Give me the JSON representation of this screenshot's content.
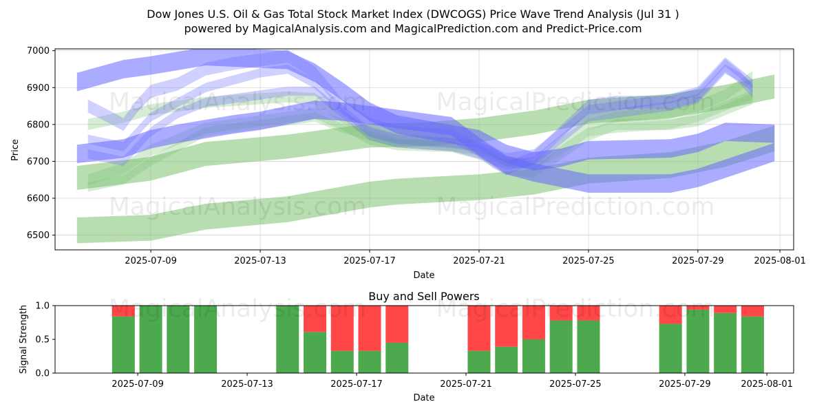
{
  "colors": {
    "green_band": "#7cc16f",
    "blue_band": "#6666ff",
    "buy": "#2e9a2e",
    "sell": "#ff3333",
    "grid": "#b0b0b0"
  },
  "watermarks": [
    "MagicalAnalysis.com",
    "MagicalPrediction.com"
  ],
  "chart_data": [
    {
      "id": "price-wave",
      "type": "area",
      "title": "Dow Jones U.S. Oil & Gas Total Stock Market Index (DWCOGS) Price Wave Trend Analysis (Jul 31 )",
      "subtitle": "powered by MagicalAnalysis.com and MagicalPrediction.com and Predict-Price.com",
      "xlabel": "Date",
      "ylabel": "Price",
      "x_start": "2025-07-05T12:00",
      "x_end": "2025-08-01T12:00",
      "ylim": [
        6460,
        7005
      ],
      "yticks": [
        6500,
        6600,
        6700,
        6800,
        6900,
        7000
      ],
      "xticks": [
        "2025-07-09",
        "2025-07-13",
        "2025-07-17",
        "2025-07-21",
        "2025-07-25",
        "2025-07-29",
        "2025-08-01"
      ],
      "grid": true,
      "bands": [
        {
          "color": "green",
          "width": 70,
          "x": [
            6.3,
            9,
            11,
            14,
            17,
            18,
            21,
            23,
            25,
            28,
            30,
            31.8
          ],
          "y": [
            6513,
            6520,
            6550,
            6570,
            6610,
            6618,
            6630,
            6645,
            6675,
            6690,
            6720,
            6762
          ]
        },
        {
          "color": "green",
          "width": 65,
          "x": [
            6.3,
            9,
            11,
            14,
            17,
            19,
            21,
            23,
            25,
            28,
            30,
            31.8
          ],
          "y": [
            6655,
            6680,
            6720,
            6740,
            6770,
            6773,
            6785,
            6805,
            6835,
            6850,
            6875,
            6903
          ]
        },
        {
          "color": "green",
          "width": 30,
          "x": [
            6.7,
            8,
            9,
            10,
            11,
            13,
            14,
            15,
            16,
            17,
            18,
            20,
            21,
            22,
            23,
            24,
            25,
            26,
            28,
            29,
            30,
            31
          ],
          "y": [
            6650,
            6680,
            6730,
            6760,
            6790,
            6810,
            6820,
            6830,
            6800,
            6760,
            6745,
            6740,
            6720,
            6680,
            6670,
            6720,
            6770,
            6800,
            6800,
            6810,
            6840,
            6870
          ]
        },
        {
          "color": "green",
          "width": 30,
          "x": [
            6.7,
            8,
            9,
            10,
            11,
            13,
            14,
            15,
            16,
            17,
            18,
            20,
            21,
            22,
            23,
            24,
            25,
            26,
            28,
            29,
            30,
            31
          ],
          "y": [
            6800,
            6820,
            6840,
            6850,
            6860,
            6870,
            6875,
            6870,
            6820,
            6780,
            6760,
            6750,
            6740,
            6700,
            6690,
            6750,
            6800,
            6820,
            6830,
            6850,
            6880,
            6930
          ]
        },
        {
          "color": "green",
          "width": 25,
          "x": [
            6.7,
            8,
            9,
            10,
            11,
            13,
            14,
            15,
            16,
            17,
            18,
            20,
            21,
            22,
            23,
            24,
            25,
            26,
            28,
            29,
            30,
            31
          ],
          "y": [
            6630,
            6650,
            6700,
            6740,
            6780,
            6800,
            6810,
            6820,
            6790,
            6770,
            6750,
            6740,
            6730,
            6700,
            6690,
            6730,
            6780,
            6790,
            6800,
            6820,
            6850,
            6880
          ]
        },
        {
          "color": "blue",
          "width": 50,
          "x": [
            6.3,
            8,
            9,
            11,
            14,
            15,
            16,
            17,
            18,
            21,
            22,
            23,
            24,
            25,
            28,
            29,
            30,
            31.8
          ],
          "y": [
            6915,
            6950,
            6960,
            6985,
            6975,
            6940,
            6890,
            6835,
            6800,
            6760,
            6720,
            6700,
            6710,
            6730,
            6735,
            6750,
            6780,
            6775
          ]
        },
        {
          "color": "blue",
          "width": 50,
          "x": [
            6.3,
            8,
            9,
            10,
            12,
            13,
            14,
            15,
            16,
            17,
            18,
            20,
            21,
            22,
            23,
            24,
            25,
            26,
            28,
            29,
            30,
            31.8
          ],
          "y": [
            6720,
            6735,
            6760,
            6775,
            6800,
            6810,
            6825,
            6840,
            6835,
            6825,
            6815,
            6795,
            6740,
            6690,
            6670,
            6655,
            6640,
            6640,
            6640,
            6655,
            6680,
            6725
          ]
        },
        {
          "color": "blue",
          "width": 35,
          "x": [
            6.7,
            7.5,
            8,
            8.5,
            9,
            10,
            11,
            12,
            13,
            14,
            15,
            16,
            17,
            18,
            20,
            21,
            21.5,
            22,
            23,
            24,
            25,
            26,
            28,
            29,
            29.5,
            30,
            30.5,
            31
          ],
          "y": [
            6850,
            6820,
            6800,
            6850,
            6890,
            6910,
            6950,
            6965,
            6975,
            6985,
            6940,
            6850,
            6800,
            6780,
            6770,
            6730,
            6700,
            6680,
            6710,
            6780,
            6850,
            6860,
            6860,
            6880,
            6920,
            6960,
            6930,
            6890
          ]
        },
        {
          "color": "blue",
          "width": 25,
          "x": [
            6.7,
            8,
            9,
            10,
            11,
            12,
            13,
            14,
            15,
            16,
            17,
            18,
            20,
            21,
            22,
            23,
            24,
            25,
            26,
            28,
            29,
            30,
            30.5,
            31
          ],
          "y": [
            6720,
            6700,
            6780,
            6830,
            6860,
            6870,
            6880,
            6890,
            6890,
            6830,
            6770,
            6750,
            6740,
            6720,
            6690,
            6700,
            6760,
            6820,
            6830,
            6850,
            6870,
            6950,
            6930,
            6900
          ]
        },
        {
          "color": "blue",
          "width": 25,
          "x": [
            6.7,
            8,
            9,
            10,
            11,
            12,
            13,
            14,
            15,
            16,
            17,
            18,
            20,
            21,
            22,
            23,
            24,
            25,
            26,
            28,
            29,
            30,
            30.5,
            31
          ],
          "y": [
            6760,
            6740,
            6820,
            6860,
            6900,
            6920,
            6940,
            6950,
            6910,
            6840,
            6780,
            6760,
            6750,
            6740,
            6710,
            6720,
            6780,
            6840,
            6850,
            6870,
            6890,
            6970,
            6940,
            6910
          ]
        }
      ]
    },
    {
      "id": "buy-sell-powers",
      "type": "bar",
      "title": "Buy and Sell Powers",
      "xlabel": "Date",
      "ylabel": "Signal Strength",
      "ylim": [
        0,
        1
      ],
      "yticks": [
        "0.0",
        "0.5",
        "1.0"
      ],
      "xticks": [
        "2025-07-09",
        "2025-07-13",
        "2025-07-17",
        "2025-07-21",
        "2025-07-25",
        "2025-07-29",
        "2025-08-01"
      ],
      "categories": [
        "2025-07-08",
        "2025-07-09",
        "2025-07-10",
        "2025-07-11",
        "2025-07-14",
        "2025-07-15",
        "2025-07-16",
        "2025-07-17",
        "2025-07-18",
        "2025-07-21",
        "2025-07-22",
        "2025-07-23",
        "2025-07-24",
        "2025-07-25",
        "2025-07-28",
        "2025-07-29",
        "2025-07-30",
        "2025-07-31"
      ],
      "series": [
        {
          "name": "Buy",
          "values": [
            0.84,
            1.0,
            1.0,
            1.0,
            1.0,
            0.61,
            0.33,
            0.33,
            0.45,
            0.33,
            0.39,
            0.5,
            0.78,
            0.78,
            0.73,
            0.94,
            0.89,
            0.84
          ]
        },
        {
          "name": "Sell",
          "values": [
            0.16,
            0.0,
            0.0,
            0.0,
            0.0,
            0.39,
            0.67,
            0.67,
            0.55,
            0.67,
            0.61,
            0.5,
            0.22,
            0.22,
            0.27,
            0.06,
            0.11,
            0.16
          ]
        }
      ]
    }
  ]
}
